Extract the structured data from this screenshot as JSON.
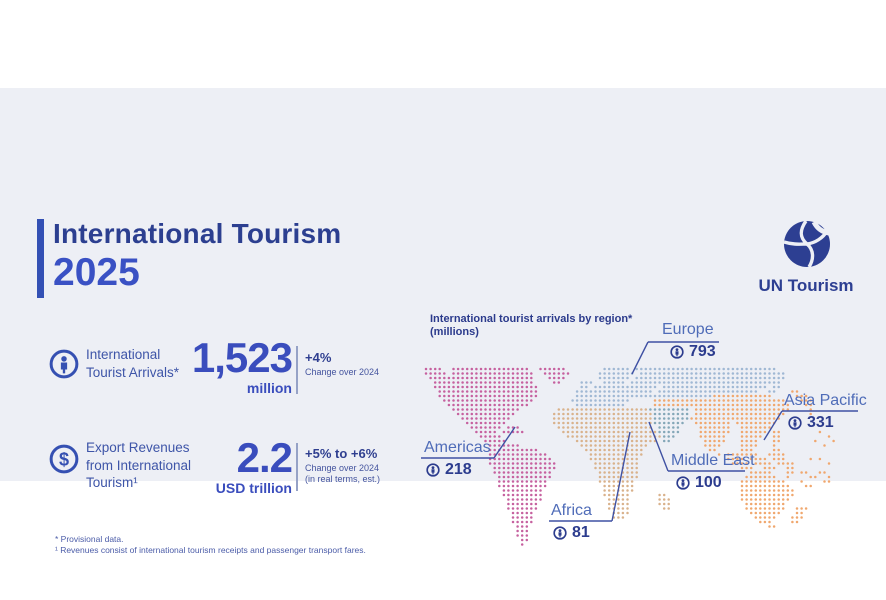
{
  "title": {
    "line1": "International Tourism",
    "line2": "2025"
  },
  "logo": {
    "label": "UN Tourism"
  },
  "stats": [
    {
      "label": "International\nTourist Arrivals*",
      "value": "1,523",
      "unit": "million",
      "change": "+4%",
      "change_note": "Change over 2024",
      "change_note2": ""
    },
    {
      "label": "Export Revenues\nfrom International\nTourism¹",
      "value": "2.2",
      "unit": "USD trillion",
      "change": "+5% to +6%",
      "change_note": "Change over 2024",
      "change_note2": "(in real terms, est.)"
    }
  ],
  "footnotes": [
    "* Provisional data.",
    "¹ Revenues consist of international tourism receipts and passenger transport fares."
  ],
  "map": {
    "title": "International tourist arrivals by region*",
    "subtitle": "(millions)",
    "regions": [
      {
        "name": "Europe",
        "value": "793"
      },
      {
        "name": "Asia Pacific",
        "value": "331"
      },
      {
        "name": "Americas",
        "value": "218"
      },
      {
        "name": "Middle East",
        "value": "100"
      },
      {
        "name": "Africa",
        "value": "81"
      }
    ],
    "colors": {
      "A": "#c6619f",
      "E": "#a0b8d4",
      "F": "#d9b28c",
      "M": "#84a7b8",
      "P": "#f0a76e"
    },
    "grid": [
      [
        [
          0,
          3,
          "A"
        ],
        [
          6,
          22,
          "A"
        ],
        [
          25,
          30,
          "A"
        ],
        [
          39,
          44,
          "E"
        ],
        [
          46,
          76,
          "E"
        ]
      ],
      [
        [
          0,
          4,
          "A"
        ],
        [
          6,
          23,
          "A"
        ],
        [
          26,
          31,
          "A"
        ],
        [
          38,
          45,
          "E"
        ],
        [
          47,
          78,
          "E"
        ]
      ],
      [
        [
          1,
          23,
          "A"
        ],
        [
          27,
          30,
          "A"
        ],
        [
          38,
          44,
          "E"
        ],
        [
          46,
          78,
          "E"
        ]
      ],
      [
        [
          2,
          23,
          "A"
        ],
        [
          28,
          29,
          "A"
        ],
        [
          34,
          36,
          "E"
        ],
        [
          39,
          43,
          "E"
        ],
        [
          45,
          77,
          "E"
        ]
      ],
      [
        [
          2,
          24,
          "A"
        ],
        [
          34,
          35,
          "E"
        ],
        [
          37,
          50,
          "E"
        ],
        [
          52,
          74,
          "E"
        ],
        [
          76,
          77,
          "E"
        ]
      ],
      [
        [
          3,
          24,
          "A"
        ],
        [
          33,
          49,
          "E"
        ],
        [
          51,
          72,
          "E"
        ],
        [
          75,
          76,
          "E"
        ],
        [
          80,
          81,
          "P"
        ]
      ],
      [
        [
          3,
          24,
          "A"
        ],
        [
          33,
          62,
          "E"
        ],
        [
          63,
          75,
          "P"
        ],
        [
          81,
          83,
          "P"
        ]
      ],
      [
        [
          4,
          23,
          "A"
        ],
        [
          32,
          44,
          "E"
        ],
        [
          50,
          78,
          "P"
        ],
        [
          82,
          84,
          "P"
        ]
      ],
      [
        [
          5,
          22,
          "A"
        ],
        [
          33,
          43,
          "E"
        ],
        [
          50,
          79,
          "P"
        ],
        [
          83,
          84,
          "P"
        ]
      ],
      [
        [
          6,
          20,
          "A"
        ],
        [
          29,
          48,
          "F"
        ],
        [
          49,
          57,
          "M"
        ],
        [
          59,
          79,
          "P"
        ],
        [
          84,
          84,
          "P"
        ]
      ],
      [
        [
          7,
          19,
          "A"
        ],
        [
          28,
          49,
          "F"
        ],
        [
          50,
          57,
          "M"
        ],
        [
          59,
          78,
          "P"
        ],
        [
          84,
          84,
          "P"
        ]
      ],
      [
        [
          8,
          18,
          "A"
        ],
        [
          28,
          49,
          "F"
        ],
        [
          50,
          57,
          "M"
        ],
        [
          58,
          77,
          "P"
        ]
      ],
      [
        [
          9,
          17,
          "A"
        ],
        [
          28,
          49,
          "F"
        ],
        [
          50,
          56,
          "M"
        ],
        [
          59,
          66,
          "P"
        ],
        [
          68,
          76,
          "P"
        ]
      ],
      [
        [
          10,
          16,
          "A"
        ],
        [
          18,
          20,
          "A"
        ],
        [
          29,
          49,
          "F"
        ],
        [
          51,
          55,
          "M"
        ],
        [
          60,
          66,
          "P"
        ],
        [
          69,
          75,
          "P"
        ]
      ],
      [
        [
          11,
          15,
          "A"
        ],
        [
          17,
          21,
          "A"
        ],
        [
          30,
          50,
          "F"
        ],
        [
          51,
          55,
          "M"
        ],
        [
          60,
          66,
          "P"
        ],
        [
          69,
          74,
          "P"
        ],
        [
          76,
          77,
          "P"
        ],
        [
          86,
          86,
          "P"
        ]
      ],
      [
        [
          12,
          16,
          "A"
        ],
        [
          31,
          51,
          "F"
        ],
        [
          52,
          54,
          "M"
        ],
        [
          60,
          65,
          "P"
        ],
        [
          69,
          73,
          "P"
        ],
        [
          76,
          77,
          "P"
        ],
        [
          88,
          88,
          "P"
        ]
      ],
      [
        [
          13,
          17,
          "A"
        ],
        [
          33,
          50,
          "F"
        ],
        [
          52,
          53,
          "M"
        ],
        [
          61,
          65,
          "P"
        ],
        [
          69,
          72,
          "P"
        ],
        [
          76,
          77,
          "P"
        ],
        [
          85,
          85,
          "P"
        ],
        [
          89,
          89,
          "P"
        ]
      ],
      [
        [
          14,
          20,
          "A"
        ],
        [
          34,
          48,
          "F"
        ],
        [
          61,
          64,
          "P"
        ],
        [
          69,
          72,
          "P"
        ],
        [
          76,
          76,
          "P"
        ],
        [
          87,
          87,
          "P"
        ]
      ],
      [
        [
          14,
          24,
          "A"
        ],
        [
          35,
          47,
          "F"
        ],
        [
          62,
          63,
          "P"
        ],
        [
          69,
          71,
          "P"
        ],
        [
          76,
          77,
          "P"
        ]
      ],
      [
        [
          14,
          26,
          "A"
        ],
        [
          36,
          47,
          "F"
        ],
        [
          64,
          64,
          "P"
        ],
        [
          66,
          72,
          "P"
        ],
        [
          75,
          78,
          "P"
        ]
      ],
      [
        [
          14,
          27,
          "A"
        ],
        [
          36,
          46,
          "F"
        ],
        [
          66,
          69,
          "P"
        ],
        [
          71,
          74,
          "P"
        ],
        [
          76,
          78,
          "P"
        ],
        [
          84,
          84,
          "P"
        ],
        [
          86,
          86,
          "P"
        ]
      ],
      [
        [
          14,
          28,
          "A"
        ],
        [
          37,
          46,
          "F"
        ],
        [
          67,
          70,
          "P"
        ],
        [
          72,
          75,
          "P"
        ],
        [
          77,
          80,
          "P"
        ],
        [
          88,
          88,
          "P"
        ]
      ],
      [
        [
          15,
          28,
          "A"
        ],
        [
          37,
          46,
          "F"
        ],
        [
          69,
          71,
          "P"
        ],
        [
          74,
          76,
          "P"
        ],
        [
          79,
          80,
          "P"
        ]
      ],
      [
        [
          15,
          27,
          "A"
        ],
        [
          38,
          46,
          "F"
        ],
        [
          71,
          75,
          "P"
        ],
        [
          79,
          80,
          "P"
        ],
        [
          82,
          83,
          "P"
        ],
        [
          86,
          87,
          "P"
        ]
      ],
      [
        [
          16,
          27,
          "A"
        ],
        [
          38,
          46,
          "F"
        ],
        [
          70,
          76,
          "P"
        ],
        [
          79,
          79,
          "P"
        ],
        [
          84,
          85,
          "P"
        ],
        [
          88,
          88,
          "P"
        ]
      ],
      [
        [
          16,
          26,
          "A"
        ],
        [
          38,
          45,
          "F"
        ],
        [
          69,
          78,
          "P"
        ],
        [
          82,
          82,
          "P"
        ],
        [
          87,
          88,
          "P"
        ]
      ],
      [
        [
          16,
          26,
          "A"
        ],
        [
          39,
          45,
          "F"
        ],
        [
          69,
          79,
          "P"
        ],
        [
          83,
          84,
          "P"
        ]
      ],
      [
        [
          17,
          25,
          "A"
        ],
        [
          39,
          45,
          "F"
        ],
        [
          69,
          80,
          "P"
        ]
      ],
      [
        [
          17,
          25,
          "A"
        ],
        [
          39,
          44,
          "F"
        ],
        [
          51,
          52,
          "F"
        ],
        [
          69,
          80,
          "P"
        ]
      ],
      [
        [
          18,
          25,
          "A"
        ],
        [
          40,
          44,
          "F"
        ],
        [
          51,
          53,
          "F"
        ],
        [
          69,
          79,
          "P"
        ]
      ],
      [
        [
          18,
          24,
          "A"
        ],
        [
          40,
          44,
          "F"
        ],
        [
          51,
          53,
          "F"
        ],
        [
          70,
          78,
          "P"
        ]
      ],
      [
        [
          18,
          24,
          "A"
        ],
        [
          40,
          44,
          "F"
        ],
        [
          52,
          53,
          "F"
        ],
        [
          70,
          78,
          "P"
        ],
        [
          81,
          83,
          "P"
        ]
      ],
      [
        [
          19,
          23,
          "A"
        ],
        [
          41,
          44,
          "F"
        ],
        [
          71,
          77,
          "P"
        ],
        [
          81,
          82,
          "P"
        ]
      ],
      [
        [
          19,
          23,
          "A"
        ],
        [
          41,
          43,
          "F"
        ],
        [
          72,
          76,
          "P"
        ],
        [
          80,
          82,
          "P"
        ]
      ],
      [
        [
          19,
          23,
          "A"
        ],
        [
          73,
          75,
          "P"
        ],
        [
          80,
          81,
          "P"
        ]
      ],
      [
        [
          20,
          22,
          "A"
        ],
        [
          75,
          76,
          "P"
        ]
      ],
      [
        [
          20,
          22,
          "A"
        ]
      ],
      [
        [
          20,
          22,
          "A"
        ]
      ],
      [
        [
          21,
          22,
          "A"
        ]
      ],
      [
        [
          21,
          21,
          "A"
        ]
      ]
    ]
  },
  "chart_data": {
    "type": "table",
    "title": "International tourist arrivals by region* (millions)",
    "categories": [
      "Europe",
      "Asia Pacific",
      "Americas",
      "Middle East",
      "Africa"
    ],
    "values": [
      793,
      331,
      218,
      100,
      81
    ],
    "annotations": [
      "International Tourist Arrivals*: 1,523 million, +4% change over 2024",
      "Export Revenues from International Tourism: 2.2 USD trillion, +5% to +6% change over 2024 (in real terms, est.)"
    ]
  }
}
